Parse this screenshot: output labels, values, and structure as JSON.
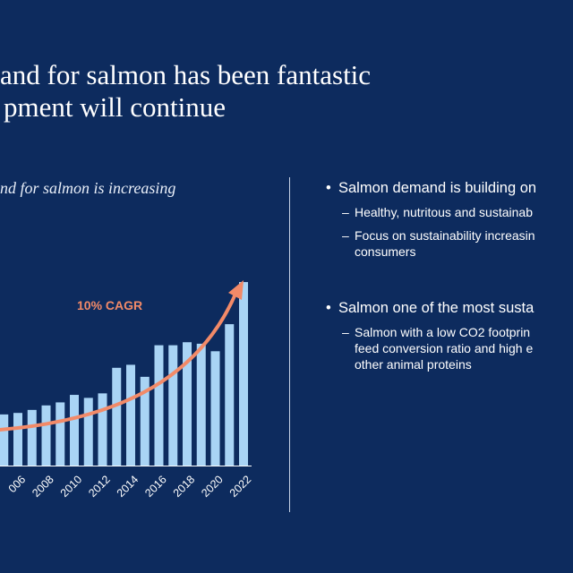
{
  "slide": {
    "title_line1": "and for salmon has been fantastic",
    "title_line2": "pment will continue",
    "colors": {
      "background": "#0d2b5e",
      "bar": "#a9d4f5",
      "arrow": "#f28a68",
      "text": "#ffffff"
    }
  },
  "bullets": [
    {
      "text": "Salmon demand is building on",
      "subs": [
        {
          "lines": [
            "Healthy, nutritous and sustainab"
          ]
        },
        {
          "lines": [
            "Focus on sustainability increasin",
            "consumers"
          ]
        }
      ]
    },
    {
      "text": "Salmon one of  the most susta",
      "subs": [
        {
          "lines": [
            "Salmon with a low CO2 footprin",
            "feed conversion ratio and high e",
            "other animal proteins"
          ]
        }
      ]
    }
  ],
  "chart_data": {
    "type": "bar",
    "title": "nd for salmon is increasing",
    "annotation": "10% CAGR",
    "tick_labels": [
      "006",
      "2008",
      "2010",
      "2012",
      "2014",
      "2016",
      "2018",
      "2020",
      "2022"
    ],
    "values": [
      32,
      33,
      38,
      34,
      35,
      37,
      40,
      42,
      47,
      45,
      48,
      65,
      67,
      59,
      80,
      80,
      82,
      81,
      76,
      94,
      122
    ],
    "ylim": [
      0,
      125
    ],
    "grid": false,
    "legend": "none"
  }
}
